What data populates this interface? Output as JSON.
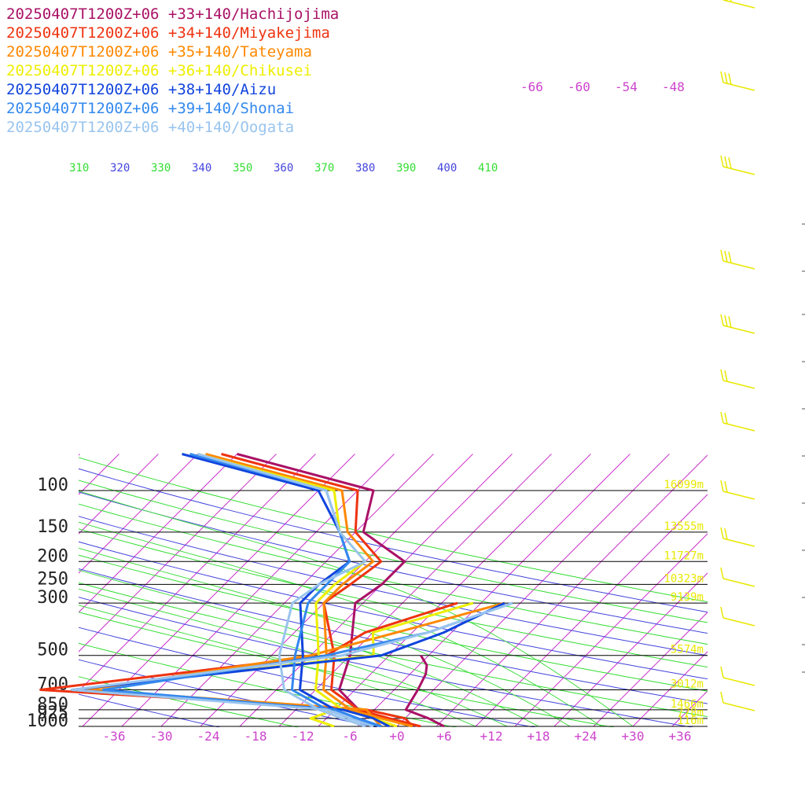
{
  "chart_data": {
    "type": "line",
    "subtype": "skew-t",
    "title": "",
    "pressure_levels": [
      100,
      150,
      200,
      250,
      300,
      500,
      700,
      850,
      925,
      1000
    ],
    "pressure_labels": [
      "100",
      "150",
      "200",
      "250",
      "300",
      "500",
      "700",
      "850",
      "925",
      "1000"
    ],
    "x_ticks": [
      "-36",
      "-30",
      "-24",
      "-18",
      "-12",
      "-6",
      "+0",
      "+6",
      "+12",
      "+18",
      "+24",
      "+30",
      "+36"
    ],
    "x_tick_values": [
      -36,
      -30,
      -24,
      -18,
      -12,
      -6,
      0,
      6,
      12,
      18,
      24,
      30,
      36
    ],
    "theta_labels": [
      "310",
      "320",
      "330",
      "340",
      "350",
      "360",
      "370",
      "380",
      "390",
      "400",
      "410"
    ],
    "top_temp_labels": [
      "-66",
      "-60",
      "-54",
      "-48"
    ],
    "height_labels": [
      {
        "p": 100,
        "text": "16099m"
      },
      {
        "p": 150,
        "text": "13555m"
      },
      {
        "p": 200,
        "text": "11727m"
      },
      {
        "p": 250,
        "text": "10323m"
      },
      {
        "p": 300,
        "text": "9139m"
      },
      {
        "p": 500,
        "text": "5574m"
      },
      {
        "p": 700,
        "text": "3012m"
      },
      {
        "p": 850,
        "text": "1466m"
      },
      {
        "p": 925,
        "text": "778m"
      },
      {
        "p": 1000,
        "text": "116m"
      }
    ],
    "series": [
      {
        "name": "20250407T1200Z+06 +33+140/Hachijojima",
        "color": "#aa1166",
        "temperature": [
          [
            70,
            -55
          ],
          [
            100,
            -33
          ],
          [
            150,
            -29
          ],
          [
            200,
            -20
          ],
          [
            250,
            -20
          ],
          [
            300,
            -21
          ],
          [
            500,
            -15
          ],
          [
            700,
            -12
          ],
          [
            850,
            -7
          ],
          [
            925,
            -3
          ],
          [
            1000,
            3
          ]
        ],
        "dewpoint": [
          [
            500,
            -6
          ],
          [
            550,
            -4
          ],
          [
            600,
            -3
          ],
          [
            700,
            -2
          ],
          [
            850,
            -1
          ],
          [
            925,
            3
          ],
          [
            1000,
            6
          ]
        ]
      },
      {
        "name": "20250407T1200Z+06 +34+140/Miyakejima",
        "color": "#ee3311",
        "temperature": [
          [
            70,
            -57
          ],
          [
            100,
            -35
          ],
          [
            150,
            -30
          ],
          [
            200,
            -23
          ],
          [
            250,
            -24
          ],
          [
            300,
            -25
          ],
          [
            500,
            -17
          ],
          [
            700,
            -13
          ],
          [
            850,
            -7
          ],
          [
            925,
            -2
          ],
          [
            1000,
            3
          ]
        ],
        "dewpoint": [
          [
            300,
            -8
          ],
          [
            400,
            -16
          ],
          [
            500,
            -18
          ],
          [
            700,
            -50
          ],
          [
            850,
            -6
          ],
          [
            925,
            0
          ],
          [
            1000,
            2
          ]
        ]
      },
      {
        "name": "20250407T1200Z+06 +35+140/Tateyama",
        "color": "#ff8800",
        "temperature": [
          [
            70,
            -59
          ],
          [
            100,
            -37
          ],
          [
            150,
            -31
          ],
          [
            200,
            -24
          ],
          [
            250,
            -25
          ],
          [
            300,
            -25
          ],
          [
            500,
            -18
          ],
          [
            700,
            -14
          ],
          [
            850,
            -8
          ],
          [
            925,
            -3
          ],
          [
            1000,
            2
          ]
        ],
        "dewpoint": [
          [
            300,
            -2
          ],
          [
            400,
            -12
          ],
          [
            500,
            -20
          ],
          [
            700,
            -44
          ],
          [
            850,
            -6
          ],
          [
            925,
            -4
          ],
          [
            1000,
            -2
          ]
        ]
      },
      {
        "name": "20250407T1200Z+06 +36+140/Chikusei",
        "color": "#eeee00",
        "temperature": [
          [
            70,
            -60
          ],
          [
            100,
            -38
          ],
          [
            150,
            -32
          ],
          [
            200,
            -25
          ],
          [
            250,
            -26
          ],
          [
            300,
            -26
          ],
          [
            500,
            -19
          ],
          [
            700,
            -15
          ],
          [
            850,
            -9
          ],
          [
            925,
            -4
          ],
          [
            1000,
            0
          ]
        ],
        "dewpoint": [
          [
            300,
            -6
          ],
          [
            400,
            -15
          ],
          [
            500,
            -12
          ],
          [
            700,
            -46
          ],
          [
            850,
            -10
          ],
          [
            925,
            -12
          ],
          [
            1000,
            -8
          ]
        ]
      },
      {
        "name": "20250407T1200Z+06 +38+140/Aizu",
        "color": "#1144dd",
        "temperature": [
          [
            70,
            -62
          ],
          [
            100,
            -40
          ],
          [
            150,
            -32
          ],
          [
            200,
            -27
          ],
          [
            250,
            -28
          ],
          [
            300,
            -28
          ],
          [
            500,
            -21
          ],
          [
            700,
            -17
          ],
          [
            850,
            -10
          ],
          [
            925,
            -6
          ],
          [
            1000,
            -2
          ]
        ],
        "dewpoint": [
          [
            300,
            -2
          ],
          [
            400,
            -6
          ],
          [
            500,
            -11
          ],
          [
            700,
            -46
          ],
          [
            850,
            -9
          ],
          [
            925,
            -4
          ],
          [
            1000,
            -1
          ]
        ]
      },
      {
        "name": "20250407T1200Z+06 +39+140/Shonai",
        "color": "#3388ee",
        "temperature": [
          [
            70,
            -61
          ],
          [
            100,
            -39
          ],
          [
            150,
            -32
          ],
          [
            200,
            -27
          ],
          [
            250,
            -27
          ],
          [
            300,
            -27
          ],
          [
            500,
            -22
          ],
          [
            700,
            -18
          ],
          [
            850,
            -11
          ],
          [
            925,
            -7
          ],
          [
            1000,
            -2
          ]
        ],
        "dewpoint": [
          [
            300,
            -1
          ],
          [
            400,
            -8
          ],
          [
            500,
            -18
          ],
          [
            700,
            -42
          ],
          [
            850,
            -10
          ],
          [
            925,
            -6
          ],
          [
            1000,
            -2
          ]
        ]
      },
      {
        "name": "20250407T1200Z+06 +40+140/Oogata",
        "color": "#99c4ee",
        "temperature": [
          [
            70,
            -60
          ],
          [
            100,
            -39
          ],
          [
            150,
            -32
          ],
          [
            200,
            -25
          ],
          [
            250,
            -28
          ],
          [
            300,
            -29
          ],
          [
            500,
            -24
          ],
          [
            700,
            -19
          ],
          [
            850,
            -12
          ],
          [
            925,
            -8
          ],
          [
            1000,
            -4
          ]
        ],
        "dewpoint": [
          [
            300,
            -1
          ],
          [
            400,
            -8
          ],
          [
            500,
            -16
          ],
          [
            700,
            -46
          ],
          [
            850,
            -11
          ],
          [
            925,
            -7
          ],
          [
            1000,
            -3
          ]
        ]
      }
    ]
  }
}
